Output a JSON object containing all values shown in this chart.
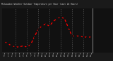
{
  "title": "Milwaukee Weather Outdoor Temperature per Hour (Last 24 Hours)",
  "hours": [
    0,
    1,
    2,
    3,
    4,
    5,
    6,
    7,
    8,
    9,
    10,
    11,
    12,
    13,
    14,
    15,
    16,
    17,
    18,
    19,
    20,
    21,
    22,
    23
  ],
  "temps": [
    42,
    40,
    38,
    37,
    37,
    38,
    37,
    39,
    46,
    53,
    56,
    58,
    56,
    60,
    63,
    64,
    63,
    55,
    47,
    47,
    47,
    46,
    46,
    46
  ],
  "line_color": "#ff0000",
  "marker_color": "#111111",
  "plot_bg": "#111111",
  "title_bg": "#222222",
  "title_fg": "#cccccc",
  "grid_color": "#555555",
  "border_color": "#000000",
  "ylim_min": 32,
  "ylim_max": 72,
  "ytick_vals": [
    40,
    45,
    50,
    55,
    60,
    65
  ],
  "xtick_vals": [
    0,
    1,
    2,
    3,
    4,
    5,
    6,
    7,
    8,
    9,
    10,
    11,
    12,
    13,
    14,
    15,
    16,
    17,
    18,
    19,
    20,
    21,
    22,
    23
  ],
  "vgrid_hours": [
    3,
    6,
    9,
    12,
    15,
    18,
    21
  ],
  "fig_bg": "#1a1a1a"
}
